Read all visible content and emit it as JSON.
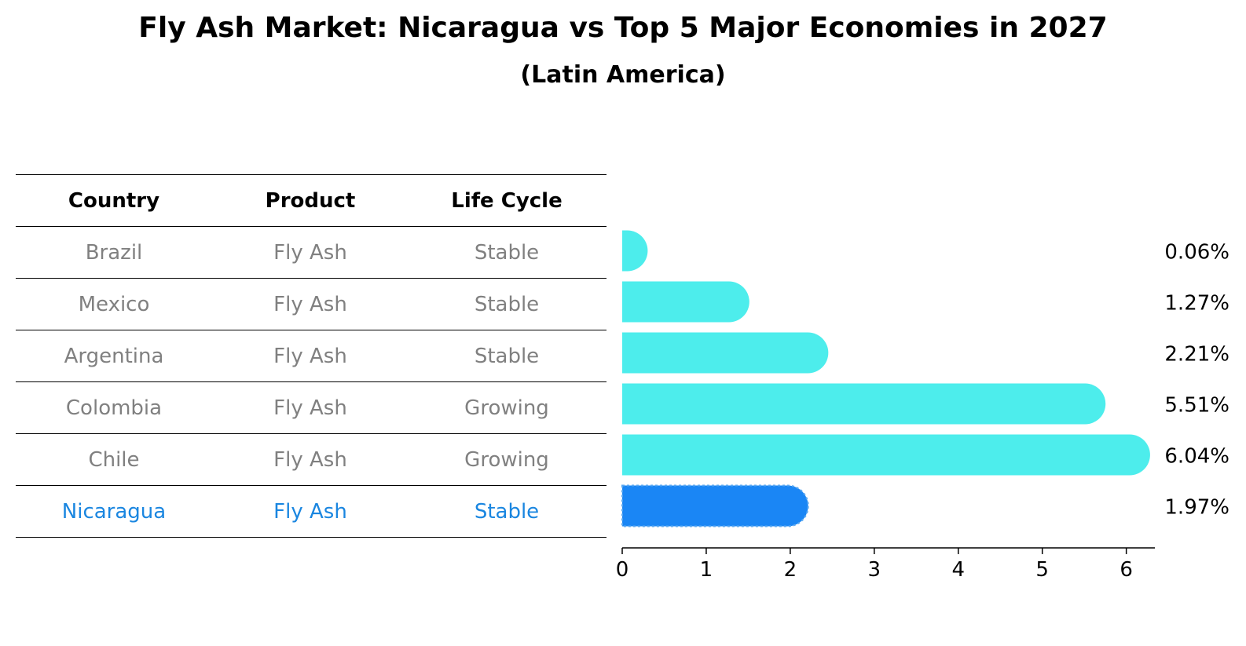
{
  "chart_data": {
    "type": "bar",
    "orientation": "horizontal",
    "title": "Fly Ash Market: Nicaragua vs Top 5 Major Economies in 2027",
    "subtitle": "(Latin America)",
    "table": {
      "headers": [
        "Country",
        "Product",
        "Life Cycle"
      ],
      "rows": [
        [
          "Brazil",
          "Fly Ash",
          "Stable"
        ],
        [
          "Mexico",
          "Fly Ash",
          "Stable"
        ],
        [
          "Argentina",
          "Fly Ash",
          "Stable"
        ],
        [
          "Colombia",
          "Fly Ash",
          "Growing"
        ],
        [
          "Chile",
          "Fly Ash",
          "Growing"
        ],
        [
          "Nicaragua",
          "Fly Ash",
          "Stable"
        ]
      ]
    },
    "categories": [
      "Brazil",
      "Mexico",
      "Argentina",
      "Colombia",
      "Chile",
      "Nicaragua"
    ],
    "values": [
      0.06,
      1.27,
      2.21,
      5.51,
      6.04,
      1.97
    ],
    "value_labels": [
      "0.06%",
      "1.27%",
      "2.21%",
      "5.51%",
      "6.04%",
      "1.97%"
    ],
    "highlight": "Nicaragua",
    "xlim": [
      0,
      6.34
    ],
    "xticks": [
      0,
      1,
      2,
      3,
      4,
      5,
      6
    ],
    "xtick_labels": [
      "0",
      "1",
      "2",
      "3",
      "4",
      "5",
      "6"
    ],
    "xlabel": "",
    "ylabel": "",
    "grid": false,
    "colors": {
      "bar": "#4dedec",
      "highlight_bar": "#1a86f5",
      "highlight_text": "#1a86e0",
      "text_muted": "#808080",
      "text": "#000000"
    }
  }
}
